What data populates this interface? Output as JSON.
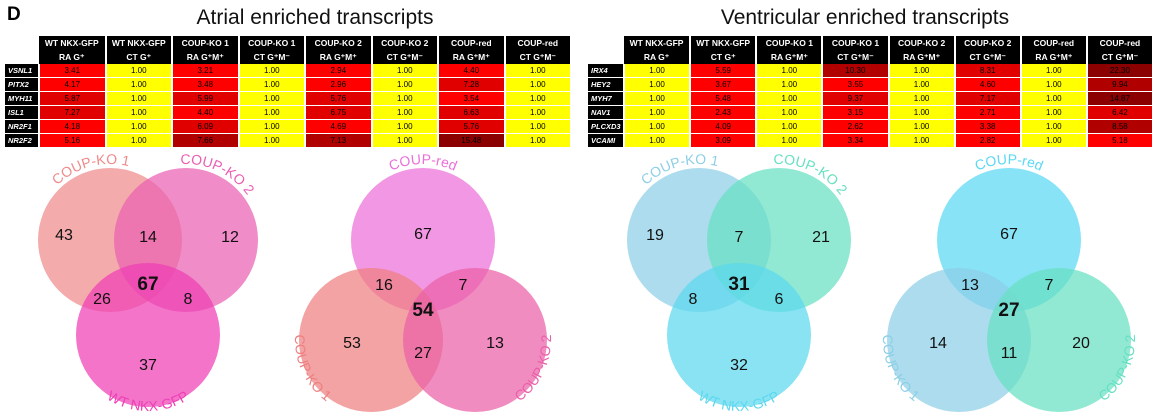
{
  "panel_label": "D",
  "atrial": {
    "title": "Atrial enriched transcripts",
    "headers_top": [
      "WT NKX-GFP",
      "WT NKX-GFP",
      "COUP-KO 1",
      "COUP-KO 1",
      "COUP-KO 2",
      "COUP-KO 2",
      "COUP-red",
      "COUP-red"
    ],
    "headers_bottom": [
      "RA G⁺",
      "CT G⁺",
      "RA G⁺M⁺",
      "CT G⁺M⁻",
      "RA G⁺M⁺",
      "CT G⁺M⁻",
      "RA G⁺M⁺",
      "CT G⁺M⁻"
    ],
    "rows": [
      {
        "gene": "VSNL1",
        "values": [
          "3.41",
          "1.00",
          "3.21",
          "1.00",
          "2.94",
          "1.00",
          "4.40",
          "1.00"
        ]
      },
      {
        "gene": "PITX2",
        "values": [
          "4.17",
          "1.00",
          "3.48",
          "1.00",
          "2.96",
          "1.00",
          "7.28",
          "1.00"
        ]
      },
      {
        "gene": "MYH11",
        "values": [
          "5.87",
          "1.00",
          "5.99",
          "1.00",
          "5.76",
          "1.00",
          "3.54",
          "1.00"
        ]
      },
      {
        "gene": "ISL1",
        "values": [
          "7.27",
          "1.00",
          "4.40",
          "1.00",
          "6.75",
          "1.00",
          "6.63",
          "1.00"
        ]
      },
      {
        "gene": "NR2F1",
        "values": [
          "4.18",
          "1.00",
          "6.09",
          "1.00",
          "4.69",
          "1.00",
          "5.76",
          "1.00"
        ]
      },
      {
        "gene": "NR2F2",
        "values": [
          "5.16",
          "1.00",
          "7.66",
          "1.00",
          "7.13",
          "1.00",
          "15.48",
          "1.00"
        ]
      }
    ],
    "colors": [
      [
        "red",
        "yellow",
        "red",
        "yellow",
        "red",
        "yellow",
        "red",
        "yellow"
      ],
      [
        "red",
        "yellow",
        "red",
        "yellow",
        "red",
        "yellow",
        "dred",
        "yellow"
      ],
      [
        "dred",
        "yellow",
        "dred",
        "yellow",
        "dred",
        "yellow",
        "red",
        "yellow"
      ],
      [
        "dred",
        "yellow",
        "red",
        "yellow",
        "dred",
        "yellow",
        "dred",
        "yellow"
      ],
      [
        "red",
        "yellow",
        "dred",
        "yellow",
        "red",
        "yellow",
        "dred",
        "yellow"
      ],
      [
        "red",
        "yellow",
        "ddred",
        "yellow",
        "ddred",
        "yellow",
        "dddred",
        "yellow"
      ]
    ]
  },
  "ventricular": {
    "title": "Ventricular enriched transcripts",
    "headers_top": [
      "WT NKX-GFP",
      "WT NKX-GFP",
      "COUP-KO 1",
      "COUP-KO 1",
      "COUP-KO 2",
      "COUP-KO 2",
      "COUP-red",
      "COUP-red"
    ],
    "headers_bottom": [
      "RA G⁺",
      "CT G⁺",
      "RA G⁺M⁺",
      "CT G⁺M⁻",
      "RA G⁺M⁺",
      "CT G⁺M⁻",
      "RA G⁺M⁺",
      "CT G⁺M⁻"
    ],
    "rows": [
      {
        "gene": "IRX4",
        "values": [
          "1.00",
          "5.59",
          "1.00",
          "10.30",
          "1.00",
          "8.31",
          "1.00",
          "22.30"
        ]
      },
      {
        "gene": "HEY2",
        "values": [
          "1.00",
          "3.67",
          "1.00",
          "3.55",
          "1.00",
          "4.60",
          "1.00",
          "9.94"
        ]
      },
      {
        "gene": "MYH7",
        "values": [
          "1.00",
          "5.48",
          "1.00",
          "9.37",
          "1.00",
          "7.17",
          "1.00",
          "14.87"
        ]
      },
      {
        "gene": "NAV1",
        "values": [
          "1.00",
          "2.43",
          "1.00",
          "3.15",
          "1.00",
          "2.71",
          "1.00",
          "6.42"
        ]
      },
      {
        "gene": "PLCXD3",
        "values": [
          "1.00",
          "4.09",
          "1.00",
          "2.62",
          "1.00",
          "3.38",
          "1.00",
          "8.58"
        ]
      },
      {
        "gene": "VCAMI",
        "values": [
          "1.00",
          "3.09",
          "1.00",
          "3.34",
          "1.00",
          "2.82",
          "1.00",
          "5.18"
        ]
      }
    ],
    "colors": [
      [
        "yellow",
        "red",
        "yellow",
        "ddred",
        "yellow",
        "dred",
        "yellow",
        "dddred"
      ],
      [
        "yellow",
        "red",
        "yellow",
        "red",
        "yellow",
        "red",
        "yellow",
        "ddred"
      ],
      [
        "yellow",
        "red",
        "yellow",
        "dred",
        "yellow",
        "dred",
        "yellow",
        "dddred"
      ],
      [
        "yellow",
        "red",
        "yellow",
        "red",
        "yellow",
        "red",
        "yellow",
        "dred"
      ],
      [
        "yellow",
        "red",
        "yellow",
        "red",
        "yellow",
        "red",
        "yellow",
        "ddred"
      ],
      [
        "yellow",
        "red",
        "yellow",
        "red",
        "yellow",
        "red",
        "yellow",
        "red"
      ]
    ]
  },
  "venns": [
    {
      "labels": [
        "COUP-KO 1",
        "COUP-KO 2",
        "WT NKX-GFP"
      ],
      "colors": [
        "#ee8a8a",
        "#ea5fb2",
        "#ee3fb4"
      ],
      "counts": {
        "a": "43",
        "b": "12",
        "c": "37",
        "ab": "14",
        "ac": "26",
        "bc": "8",
        "abc": "67"
      }
    },
    {
      "labels": [
        "COUP-red",
        "COUP-KO 1",
        "COUP-KO 2"
      ],
      "colors": [
        "#ec6fd8",
        "#ee7f7f",
        "#ea5fa8"
      ],
      "counts": {
        "a": "67",
        "b": "53",
        "c": "13",
        "ab": "16",
        "ac": "7",
        "bc": "27",
        "abc": "54"
      }
    },
    {
      "labels": [
        "COUP-KO 1",
        "COUP-KO 2",
        "WT NKX-GFP"
      ],
      "colors": [
        "#8ccfe6",
        "#66e0c2",
        "#5cd8ee"
      ],
      "counts": {
        "a": "19",
        "b": "21",
        "c": "32",
        "ab": "7",
        "ac": "8",
        "bc": "6",
        "abc": "31"
      }
    },
    {
      "labels": [
        "COUP-red",
        "COUP-KO 1",
        "COUP-KO 2"
      ],
      "colors": [
        "#5ad8f4",
        "#8ccfe6",
        "#66e0c2"
      ],
      "counts": {
        "a": "67",
        "b": "14",
        "c": "20",
        "ab": "13",
        "ac": "7",
        "bc": "11",
        "abc": "27"
      }
    }
  ]
}
